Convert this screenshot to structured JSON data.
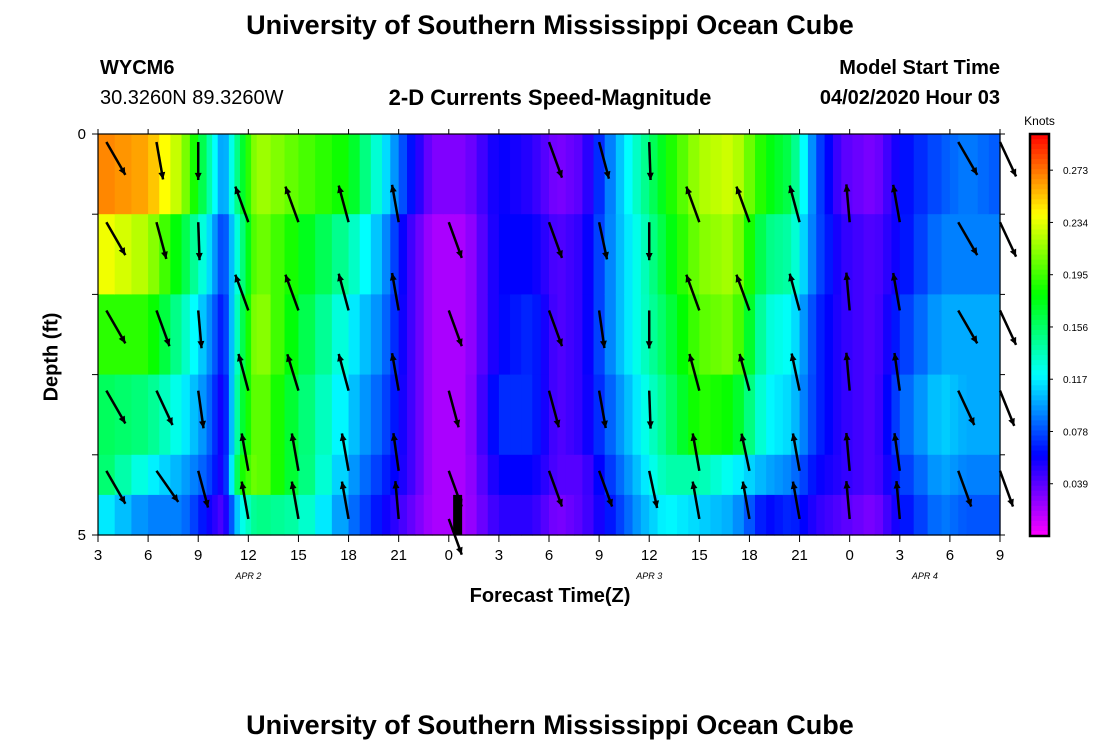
{
  "header": {
    "title": "University of Southern Mississippi Ocean Cube",
    "station_id": "WYCM6",
    "coords": "30.3260N 89.3260W",
    "subtitle": "2-D Currents Speed-Magnitude",
    "model_label": "Model Start Time",
    "model_time": "04/02/2020 Hour 03"
  },
  "footer": {
    "title": "University of Southern Mississippi Ocean Cube"
  },
  "chart_data": {
    "type": "heatmap",
    "title": "2-D Currents Speed-Magnitude",
    "xlabel": "Forecast Time(Z)",
    "ylabel": "Depth (ft)",
    "x_ticks": [
      "3",
      "6",
      "9",
      "12",
      "15",
      "18",
      "21",
      "0",
      "3",
      "6",
      "9",
      "12",
      "15",
      "18",
      "21",
      "0",
      "3",
      "6",
      "9"
    ],
    "date_labels": [
      {
        "label": "APR 2",
        "hour_index": 3
      },
      {
        "label": "APR 3",
        "hour_index": 11
      },
      {
        "label": "APR 4",
        "hour_index": 16.5
      }
    ],
    "y_ticks": [
      "0",
      "5"
    ],
    "ylim": [
      0,
      5
    ],
    "hours_range": [
      0,
      54
    ],
    "colorbar": {
      "unit": "Knots",
      "ticks": [
        "0.273",
        "0.234",
        "0.195",
        "0.156",
        "0.117",
        "0.078",
        "0.039"
      ],
      "range": [
        0,
        0.3
      ]
    },
    "rows_depth": [
      0.5,
      1.5,
      2.5,
      3.5,
      4.5
    ],
    "columns": [
      [
        0,
        [
          0.27,
          0.24,
          0.19,
          0.16,
          0.16,
          0.12
        ]
      ],
      [
        3,
        [
          0.26,
          0.22,
          0.19,
          0.15,
          0.12,
          0.09
        ]
      ],
      [
        5,
        [
          0.22,
          0.17,
          0.14,
          0.12,
          0.1,
          0.09
        ]
      ],
      [
        6.5,
        [
          0.15,
          0.12,
          0.1,
          0.09,
          0.08,
          0.06
        ]
      ],
      [
        7.5,
        [
          0.09,
          0.07,
          0.06,
          0.05,
          0.05,
          0.04
        ]
      ],
      [
        8.5,
        [
          0.16,
          0.14,
          0.15,
          0.16,
          0.18,
          0.12
        ]
      ],
      [
        9.5,
        [
          0.22,
          0.21,
          0.22,
          0.21,
          0.21,
          0.15
        ]
      ],
      [
        12,
        [
          0.2,
          0.18,
          0.17,
          0.16,
          0.16,
          0.14
        ]
      ],
      [
        15,
        [
          0.18,
          0.14,
          0.12,
          0.11,
          0.1,
          0.09
        ]
      ],
      [
        17,
        [
          0.12,
          0.1,
          0.09,
          0.08,
          0.07,
          0.06
        ]
      ],
      [
        18.5,
        [
          0.07,
          0.05,
          0.05,
          0.05,
          0.05,
          0.04
        ]
      ],
      [
        20,
        [
          0.03,
          0.02,
          0.02,
          0.02,
          0.02,
          0.02
        ]
      ],
      [
        22,
        [
          0.03,
          0.02,
          0.02,
          0.02,
          0.02,
          0.02
        ]
      ],
      [
        24,
        [
          0.06,
          0.06,
          0.06,
          0.07,
          0.06,
          0.05
        ]
      ],
      [
        26,
        [
          0.05,
          0.06,
          0.07,
          0.07,
          0.06,
          0.05
        ]
      ],
      [
        27.5,
        [
          0.03,
          0.04,
          0.04,
          0.04,
          0.04,
          0.03
        ]
      ],
      [
        29,
        [
          0.04,
          0.05,
          0.05,
          0.05,
          0.04,
          0.04
        ]
      ],
      [
        31,
        [
          0.1,
          0.1,
          0.1,
          0.09,
          0.08,
          0.07
        ]
      ],
      [
        32.5,
        [
          0.14,
          0.13,
          0.13,
          0.12,
          0.11,
          0.1
        ]
      ],
      [
        34,
        [
          0.18,
          0.17,
          0.16,
          0.15,
          0.14,
          0.12
        ]
      ],
      [
        36,
        [
          0.22,
          0.21,
          0.2,
          0.19,
          0.14,
          0.11
        ]
      ],
      [
        38,
        [
          0.23,
          0.22,
          0.21,
          0.18,
          0.12,
          0.1
        ]
      ],
      [
        40,
        [
          0.18,
          0.15,
          0.13,
          0.12,
          0.1,
          0.06
        ]
      ],
      [
        41.5,
        [
          0.16,
          0.14,
          0.12,
          0.11,
          0.09,
          0.07
        ]
      ],
      [
        43,
        [
          0.08,
          0.08,
          0.07,
          0.07,
          0.06,
          0.05
        ]
      ],
      [
        44.5,
        [
          0.04,
          0.05,
          0.05,
          0.05,
          0.05,
          0.04
        ]
      ],
      [
        46.5,
        [
          0.03,
          0.04,
          0.04,
          0.04,
          0.04,
          0.03
        ]
      ],
      [
        48,
        [
          0.06,
          0.06,
          0.07,
          0.08,
          0.07,
          0.06
        ]
      ],
      [
        50.5,
        [
          0.08,
          0.09,
          0.1,
          0.11,
          0.1,
          0.09
        ]
      ],
      [
        52,
        [
          0.09,
          0.09,
          0.1,
          0.1,
          0.09,
          0.08
        ]
      ],
      [
        54,
        [
          0.08,
          0.09,
          0.1,
          0.1,
          0.09,
          0.08
        ]
      ]
    ],
    "vector_rows_depth": [
      0.1,
      1.1,
      2.2,
      3.2,
      4.2,
      4.8
    ],
    "vectors": [
      {
        "hour": 0.5,
        "dirs": [
          150,
          150,
          150,
          150,
          150,
          null
        ]
      },
      {
        "hour": 3.5,
        "dirs": [
          170,
          165,
          160,
          155,
          145,
          null
        ]
      },
      {
        "hour": 6,
        "dirs": [
          180,
          178,
          175,
          172,
          165,
          null
        ]
      },
      {
        "hour": 9,
        "dirs": [
          null,
          340,
          340,
          345,
          350,
          350
        ]
      },
      {
        "hour": 12,
        "dirs": [
          null,
          340,
          340,
          343,
          350,
          350
        ]
      },
      {
        "hour": 15,
        "dirs": [
          null,
          345,
          345,
          345,
          350,
          350
        ]
      },
      {
        "hour": 18,
        "dirs": [
          null,
          350,
          350,
          350,
          352,
          355
        ]
      },
      {
        "hour": 21,
        "dirs": [
          null,
          160,
          160,
          165,
          160,
          160
        ]
      },
      {
        "hour": 27,
        "dirs": [
          160,
          160,
          160,
          165,
          160,
          null
        ]
      },
      {
        "hour": 30,
        "dirs": [
          165,
          168,
          172,
          170,
          160,
          null
        ]
      },
      {
        "hour": 33,
        "dirs": [
          178,
          180,
          180,
          178,
          168,
          null
        ]
      },
      {
        "hour": 36,
        "dirs": [
          null,
          340,
          340,
          345,
          350,
          350
        ]
      },
      {
        "hour": 39,
        "dirs": [
          null,
          340,
          340,
          345,
          348,
          350
        ]
      },
      {
        "hour": 42,
        "dirs": [
          null,
          345,
          345,
          348,
          350,
          350
        ]
      },
      {
        "hour": 45,
        "dirs": [
          null,
          355,
          355,
          355,
          355,
          355
        ]
      },
      {
        "hour": 48,
        "dirs": [
          null,
          350,
          350,
          352,
          352,
          355
        ]
      },
      {
        "hour": 51.5,
        "dirs": [
          150,
          150,
          150,
          155,
          160,
          null
        ]
      },
      {
        "hour": 54,
        "dirs": [
          155,
          155,
          155,
          158,
          160,
          null
        ]
      }
    ],
    "marker": {
      "hour": 21.5,
      "depth_from": 4.5,
      "depth_to": 5
    }
  }
}
